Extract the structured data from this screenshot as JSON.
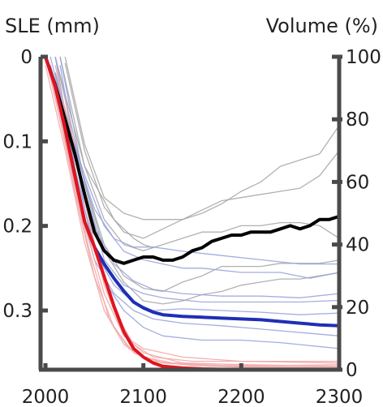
{
  "chart_data": {
    "type": "line",
    "left_axis_label": "SLE (mm)",
    "right_axis_label": "Volume (%)",
    "x_ticks": [
      "2000",
      "2100",
      "2200",
      "2300"
    ],
    "left_ticks": [
      "0",
      "0.1",
      "0.2",
      "0.3"
    ],
    "right_ticks": [
      "100",
      "80",
      "60",
      "40",
      "20",
      "0"
    ],
    "xlim": [
      1995,
      2300
    ],
    "ylim_left": [
      0,
      0.37
    ],
    "ylim_right": [
      0,
      100
    ],
    "grid": false,
    "colors": {
      "axis": "#4a4a4a",
      "black_line": "#000000",
      "blue_line": "#1f2fb4",
      "red_line": "#e0141e",
      "gray_ensemble": "#a8a8a8",
      "blue_ensemble": "#9aa4dc",
      "red_ensemble": "#f2a8a8"
    },
    "main_series": [
      {
        "color": "#000000",
        "axis": "right",
        "points": [
          [
            2000,
            100
          ],
          [
            2010,
            91
          ],
          [
            2020,
            80
          ],
          [
            2030,
            69
          ],
          [
            2040,
            56
          ],
          [
            2050,
            44
          ],
          [
            2060,
            38
          ],
          [
            2070,
            35
          ],
          [
            2080,
            34
          ],
          [
            2090,
            35
          ],
          [
            2100,
            36
          ],
          [
            2110,
            36
          ],
          [
            2120,
            35
          ],
          [
            2130,
            35
          ],
          [
            2140,
            36
          ],
          [
            2150,
            38
          ],
          [
            2160,
            39
          ],
          [
            2170,
            41
          ],
          [
            2180,
            42
          ],
          [
            2190,
            43
          ],
          [
            2200,
            43
          ],
          [
            2210,
            44
          ],
          [
            2220,
            44
          ],
          [
            2230,
            44
          ],
          [
            2240,
            45
          ],
          [
            2250,
            46
          ],
          [
            2260,
            45
          ],
          [
            2270,
            46
          ],
          [
            2280,
            48
          ],
          [
            2290,
            48
          ],
          [
            2300,
            49
          ]
        ]
      },
      {
        "color": "#1f2fb4",
        "axis": "left",
        "points": [
          [
            2000,
            0.0
          ],
          [
            2010,
            0.035
          ],
          [
            2020,
            0.085
          ],
          [
            2030,
            0.14
          ],
          [
            2040,
            0.195
          ],
          [
            2050,
            0.225
          ],
          [
            2060,
            0.245
          ],
          [
            2070,
            0.262
          ],
          [
            2080,
            0.277
          ],
          [
            2090,
            0.29
          ],
          [
            2100,
            0.297
          ],
          [
            2110,
            0.302
          ],
          [
            2120,
            0.305
          ],
          [
            2140,
            0.307
          ],
          [
            2160,
            0.308
          ],
          [
            2180,
            0.309
          ],
          [
            2200,
            0.31
          ],
          [
            2220,
            0.311
          ],
          [
            2240,
            0.313
          ],
          [
            2260,
            0.315
          ],
          [
            2280,
            0.317
          ],
          [
            2300,
            0.318
          ]
        ]
      },
      {
        "color": "#e0141e",
        "axis": "left",
        "points": [
          [
            2000,
            0.0
          ],
          [
            2010,
            0.035
          ],
          [
            2020,
            0.085
          ],
          [
            2030,
            0.14
          ],
          [
            2040,
            0.195
          ],
          [
            2050,
            0.225
          ],
          [
            2060,
            0.26
          ],
          [
            2070,
            0.295
          ],
          [
            2080,
            0.325
          ],
          [
            2090,
            0.345
          ],
          [
            2100,
            0.355
          ],
          [
            2110,
            0.362
          ],
          [
            2120,
            0.366
          ],
          [
            2140,
            0.368
          ],
          [
            2160,
            0.369
          ],
          [
            2200,
            0.37
          ],
          [
            2300,
            0.37
          ]
        ]
      }
    ],
    "ensemble_series": [
      {
        "color": "#a8a8a8",
        "axis": "right",
        "points": [
          [
            2010,
            100
          ],
          [
            2020,
            88
          ],
          [
            2040,
            65
          ],
          [
            2060,
            54
          ],
          [
            2070,
            48
          ],
          [
            2080,
            45
          ],
          [
            2090,
            42
          ],
          [
            2100,
            40
          ],
          [
            2110,
            39
          ]
        ]
      },
      {
        "color": "#a8a8a8",
        "axis": "right",
        "points": [
          [
            2020,
            100
          ],
          [
            2040,
            72
          ],
          [
            2060,
            55
          ],
          [
            2080,
            50
          ],
          [
            2100,
            48
          ],
          [
            2140,
            48
          ],
          [
            2160,
            50
          ],
          [
            2180,
            53
          ],
          [
            2200,
            57
          ],
          [
            2220,
            60
          ],
          [
            2240,
            65
          ],
          [
            2260,
            67
          ],
          [
            2280,
            69
          ],
          [
            2300,
            78
          ]
        ]
      },
      {
        "color": "#a8a8a8",
        "axis": "right",
        "points": [
          [
            2020,
            98
          ],
          [
            2040,
            70
          ],
          [
            2060,
            52
          ],
          [
            2080,
            44
          ],
          [
            2100,
            42
          ],
          [
            2120,
            45
          ],
          [
            2140,
            48
          ],
          [
            2160,
            51
          ],
          [
            2180,
            54
          ],
          [
            2200,
            55
          ],
          [
            2220,
            56
          ],
          [
            2240,
            57
          ],
          [
            2260,
            58
          ],
          [
            2280,
            62
          ],
          [
            2300,
            70
          ]
        ]
      },
      {
        "color": "#a8a8a8",
        "axis": "right",
        "points": [
          [
            2015,
            100
          ],
          [
            2040,
            65
          ],
          [
            2060,
            48
          ],
          [
            2080,
            40
          ],
          [
            2100,
            38
          ],
          [
            2120,
            40
          ],
          [
            2140,
            42
          ],
          [
            2160,
            44
          ],
          [
            2180,
            44
          ],
          [
            2200,
            46
          ],
          [
            2220,
            46
          ],
          [
            2240,
            47
          ],
          [
            2260,
            47
          ],
          [
            2280,
            46
          ],
          [
            2300,
            42
          ]
        ]
      },
      {
        "color": "#a8a8a8",
        "axis": "right",
        "points": [
          [
            2010,
            100
          ],
          [
            2040,
            60
          ],
          [
            2060,
            40
          ],
          [
            2080,
            30
          ],
          [
            2100,
            26
          ],
          [
            2120,
            25
          ],
          [
            2140,
            28
          ],
          [
            2160,
            30
          ],
          [
            2180,
            33
          ],
          [
            2200,
            33
          ],
          [
            2220,
            33
          ],
          [
            2240,
            34
          ],
          [
            2260,
            34
          ],
          [
            2280,
            34
          ],
          [
            2300,
            35
          ]
        ]
      },
      {
        "color": "#a8a8a8",
        "axis": "right",
        "points": [
          [
            2010,
            95
          ],
          [
            2040,
            60
          ],
          [
            2060,
            38
          ],
          [
            2080,
            28
          ],
          [
            2100,
            22
          ],
          [
            2120,
            21
          ],
          [
            2140,
            22
          ],
          [
            2160,
            24
          ],
          [
            2180,
            25
          ],
          [
            2200,
            27
          ],
          [
            2220,
            28
          ],
          [
            2240,
            29
          ],
          [
            2260,
            29
          ],
          [
            2280,
            30
          ],
          [
            2300,
            31
          ]
        ]
      },
      {
        "color": "#9aa4dc",
        "axis": "left",
        "points": [
          [
            2005,
            0.0
          ],
          [
            2020,
            0.07
          ],
          [
            2040,
            0.14
          ],
          [
            2060,
            0.2
          ],
          [
            2080,
            0.23
          ],
          [
            2100,
            0.24
          ],
          [
            2120,
            0.245
          ],
          [
            2140,
            0.25
          ],
          [
            2160,
            0.25
          ],
          [
            2200,
            0.255
          ],
          [
            2240,
            0.255
          ],
          [
            2270,
            0.262
          ],
          [
            2300,
            0.255
          ]
        ]
      },
      {
        "color": "#9aa4dc",
        "axis": "left",
        "points": [
          [
            2005,
            0.01
          ],
          [
            2030,
            0.12
          ],
          [
            2050,
            0.2
          ],
          [
            2070,
            0.245
          ],
          [
            2090,
            0.265
          ],
          [
            2110,
            0.275
          ],
          [
            2140,
            0.28
          ],
          [
            2180,
            0.283
          ],
          [
            2220,
            0.283
          ],
          [
            2260,
            0.285
          ],
          [
            2300,
            0.28
          ]
        ]
      },
      {
        "color": "#9aa4dc",
        "axis": "left",
        "points": [
          [
            2010,
            0.02
          ],
          [
            2030,
            0.11
          ],
          [
            2050,
            0.18
          ],
          [
            2070,
            0.215
          ],
          [
            2090,
            0.225
          ],
          [
            2110,
            0.225
          ],
          [
            2140,
            0.23
          ],
          [
            2180,
            0.235
          ],
          [
            2220,
            0.24
          ],
          [
            2260,
            0.245
          ],
          [
            2300,
            0.245
          ]
        ]
      },
      {
        "color": "#9aa4dc",
        "axis": "left",
        "points": [
          [
            2005,
            0.01
          ],
          [
            2030,
            0.15
          ],
          [
            2050,
            0.24
          ],
          [
            2070,
            0.28
          ],
          [
            2090,
            0.3
          ],
          [
            2110,
            0.31
          ],
          [
            2140,
            0.315
          ],
          [
            2180,
            0.318
          ],
          [
            2220,
            0.322
          ],
          [
            2260,
            0.326
          ],
          [
            2300,
            0.33
          ]
        ]
      },
      {
        "color": "#9aa4dc",
        "axis": "left",
        "points": [
          [
            2010,
            0.0
          ],
          [
            2030,
            0.13
          ],
          [
            2050,
            0.23
          ],
          [
            2070,
            0.27
          ],
          [
            2090,
            0.29
          ],
          [
            2110,
            0.3
          ],
          [
            2140,
            0.298
          ],
          [
            2180,
            0.3
          ],
          [
            2220,
            0.302
          ],
          [
            2260,
            0.305
          ],
          [
            2300,
            0.303
          ]
        ]
      },
      {
        "color": "#9aa4dc",
        "axis": "left",
        "points": [
          [
            2015,
            0.01
          ],
          [
            2040,
            0.18
          ],
          [
            2060,
            0.265
          ],
          [
            2080,
            0.3
          ],
          [
            2100,
            0.32
          ],
          [
            2120,
            0.33
          ],
          [
            2160,
            0.335
          ],
          [
            2200,
            0.335
          ],
          [
            2240,
            0.338
          ],
          [
            2300,
            0.345
          ]
        ]
      },
      {
        "color": "#9aa4dc",
        "axis": "left",
        "points": [
          [
            2015,
            0.0
          ],
          [
            2040,
            0.15
          ],
          [
            2060,
            0.24
          ],
          [
            2080,
            0.27
          ],
          [
            2100,
            0.28
          ],
          [
            2120,
            0.285
          ],
          [
            2160,
            0.29
          ],
          [
            2200,
            0.29
          ],
          [
            2260,
            0.29
          ],
          [
            2300,
            0.288
          ]
        ]
      },
      {
        "color": "#f2a8a8",
        "axis": "left",
        "points": [
          [
            2000,
            0.01
          ],
          [
            2020,
            0.11
          ],
          [
            2040,
            0.22
          ],
          [
            2060,
            0.3
          ],
          [
            2080,
            0.34
          ],
          [
            2100,
            0.355
          ],
          [
            2130,
            0.362
          ],
          [
            2180,
            0.365
          ],
          [
            2240,
            0.365
          ],
          [
            2300,
            0.364
          ]
        ]
      },
      {
        "color": "#f2a8a8",
        "axis": "left",
        "points": [
          [
            2005,
            0.02
          ],
          [
            2025,
            0.13
          ],
          [
            2045,
            0.23
          ],
          [
            2065,
            0.31
          ],
          [
            2085,
            0.345
          ],
          [
            2110,
            0.36
          ],
          [
            2150,
            0.365
          ],
          [
            2200,
            0.367
          ],
          [
            2300,
            0.368
          ]
        ]
      },
      {
        "color": "#f2a8a8",
        "axis": "left",
        "points": [
          [
            2010,
            0.03
          ],
          [
            2030,
            0.16
          ],
          [
            2050,
            0.26
          ],
          [
            2070,
            0.32
          ],
          [
            2090,
            0.35
          ],
          [
            2120,
            0.362
          ],
          [
            2170,
            0.366
          ],
          [
            2300,
            0.367
          ]
        ]
      },
      {
        "color": "#f2a8a8",
        "axis": "left",
        "points": [
          [
            2000,
            0.0
          ],
          [
            2020,
            0.1
          ],
          [
            2040,
            0.2
          ],
          [
            2060,
            0.28
          ],
          [
            2080,
            0.33
          ],
          [
            2100,
            0.345
          ],
          [
            2140,
            0.355
          ],
          [
            2200,
            0.36
          ],
          [
            2300,
            0.362
          ]
        ]
      },
      {
        "color": "#f2a8a8",
        "axis": "left",
        "points": [
          [
            2010,
            0.01
          ],
          [
            2030,
            0.12
          ],
          [
            2050,
            0.22
          ],
          [
            2070,
            0.3
          ],
          [
            2090,
            0.34
          ],
          [
            2110,
            0.355
          ],
          [
            2150,
            0.36
          ],
          [
            2220,
            0.36
          ],
          [
            2300,
            0.36
          ]
        ]
      },
      {
        "color": "#f2a8a8",
        "axis": "left",
        "points": [
          [
            2020,
            0.05
          ],
          [
            2040,
            0.17
          ],
          [
            2060,
            0.27
          ],
          [
            2080,
            0.33
          ],
          [
            2100,
            0.35
          ],
          [
            2140,
            0.362
          ],
          [
            2200,
            0.364
          ],
          [
            2300,
            0.366
          ]
        ]
      }
    ]
  }
}
